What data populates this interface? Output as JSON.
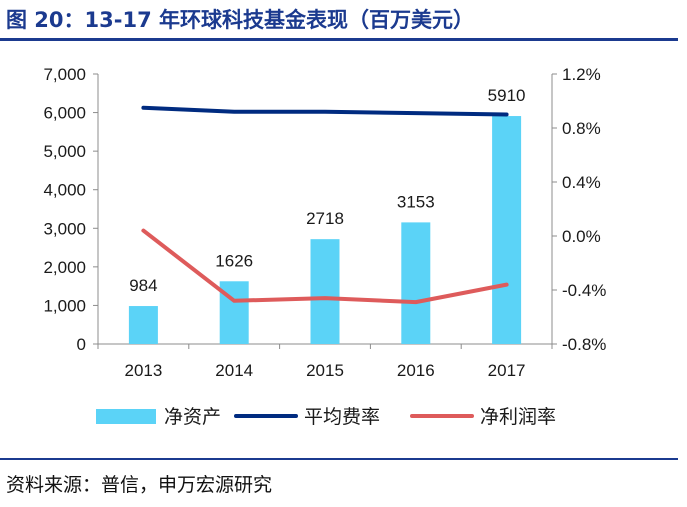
{
  "title": "图 20：13-17 年环球科技基金表现（百万美元）",
  "source": "资料来源：普信，申万宏源研究",
  "colors": {
    "net_assets": "#5bd3f7",
    "avg_fee": "#002b80",
    "net_margin": "#de5b5b",
    "axis": "#8c8c8c",
    "title": "#1b3a8f"
  },
  "chart_data": {
    "type": "bar",
    "categories": [
      "2013",
      "2014",
      "2015",
      "2016",
      "2017"
    ],
    "ylim": [
      0,
      7000
    ],
    "yticks": [
      "0",
      "1,000",
      "2,000",
      "3,000",
      "4,000",
      "5,000",
      "6,000",
      "7,000"
    ],
    "y2lim": [
      -0.8,
      1.2
    ],
    "y2ticks": [
      "-0.8%",
      "-0.4%",
      "0.0%",
      "0.4%",
      "0.8%",
      "1.2%"
    ],
    "grid": false,
    "legend_position": "bottom",
    "series": [
      {
        "name": "净资产",
        "type": "bar",
        "axis": "left",
        "values": [
          984,
          1626,
          2718,
          3153,
          5910
        ],
        "labels": [
          "984",
          "1626",
          "2718",
          "3153",
          "5910"
        ]
      },
      {
        "name": "平均费率",
        "type": "line",
        "axis": "right",
        "values": [
          0.95,
          0.92,
          0.92,
          0.91,
          0.9
        ]
      },
      {
        "name": "净利润率",
        "type": "line",
        "axis": "right",
        "values": [
          0.04,
          -0.48,
          -0.46,
          -0.49,
          -0.36
        ]
      }
    ]
  }
}
